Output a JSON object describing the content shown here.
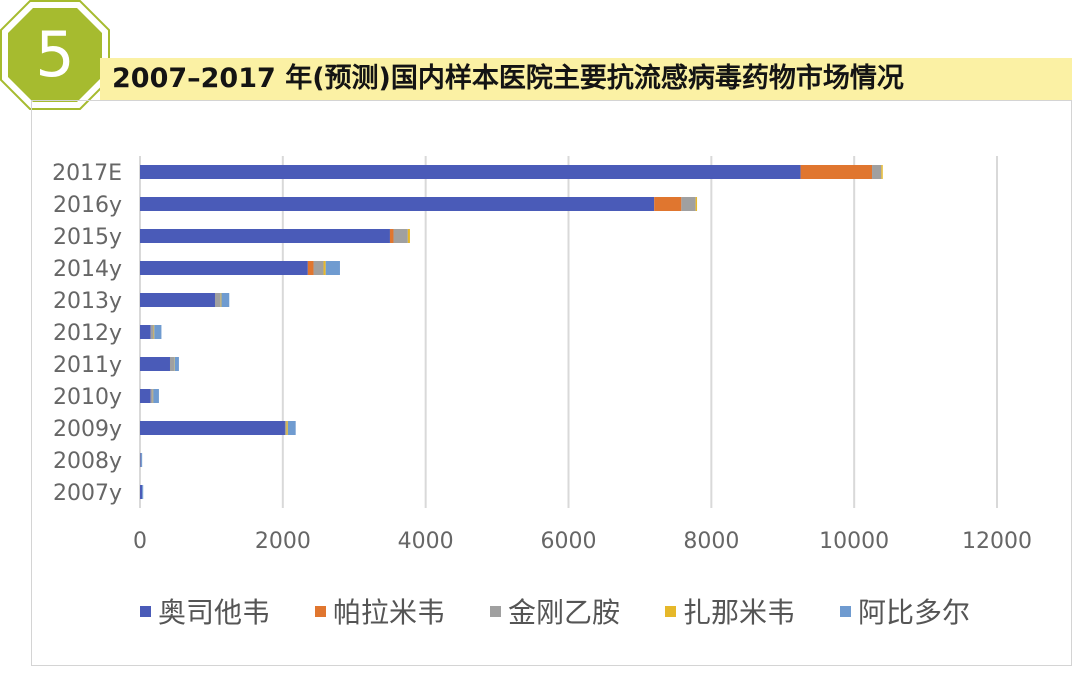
{
  "badge": {
    "number": "5",
    "color": "#a6bb2f"
  },
  "chart_data": {
    "type": "bar",
    "orientation": "horizontal",
    "stacked": true,
    "title": "2007–2017 年(预测)国内样本医院主要抗流感病毒药物市场情况",
    "xlabel": "",
    "ylabel": "",
    "xlim": [
      0,
      12000
    ],
    "x_ticks": [
      "0",
      "2000",
      "4000",
      "6000",
      "8000",
      "10000",
      "12000"
    ],
    "grid": "vertical",
    "legend_position": "bottom",
    "categories": [
      "2017E",
      "2016y",
      "2015y",
      "2014y",
      "2013y",
      "2012y",
      "2011y",
      "2010y",
      "2009y",
      "2008y",
      "2007y"
    ],
    "series": [
      {
        "name": "奥司他韦",
        "color": "#4a5bb8",
        "values": [
          9250,
          7200,
          3500,
          2350,
          1050,
          150,
          420,
          150,
          2030,
          10,
          30
        ]
      },
      {
        "name": "帕拉米韦",
        "color": "#e0762f",
        "values": [
          1000,
          380,
          50,
          80,
          0,
          0,
          0,
          0,
          0,
          0,
          0
        ]
      },
      {
        "name": "金刚乙胺",
        "color": "#a0a0a0",
        "values": [
          130,
          200,
          200,
          140,
          80,
          40,
          60,
          30,
          20,
          5,
          0
        ]
      },
      {
        "name": "扎那米韦",
        "color": "#e6b82a",
        "values": [
          20,
          20,
          30,
          30,
          10,
          10,
          5,
          5,
          20,
          0,
          0
        ]
      },
      {
        "name": "阿比多尔",
        "color": "#6f9bd0",
        "values": [
          0,
          0,
          0,
          200,
          110,
          100,
          60,
          80,
          110,
          15,
          15
        ]
      }
    ]
  }
}
